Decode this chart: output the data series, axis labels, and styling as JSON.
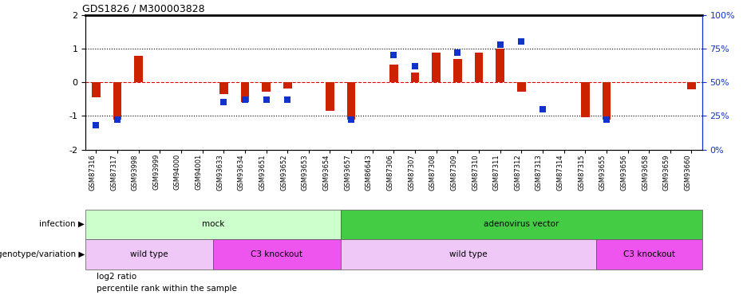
{
  "title": "GDS1826 / M300003828",
  "samples": [
    "GSM87316",
    "GSM87317",
    "GSM93998",
    "GSM93999",
    "GSM94000",
    "GSM94001",
    "GSM93633",
    "GSM93634",
    "GSM93651",
    "GSM93652",
    "GSM93653",
    "GSM93654",
    "GSM93657",
    "GSM86643",
    "GSM87306",
    "GSM87307",
    "GSM87308",
    "GSM87309",
    "GSM87310",
    "GSM87311",
    "GSM87312",
    "GSM87313",
    "GSM87314",
    "GSM87315",
    "GSM93655",
    "GSM93656",
    "GSM93658",
    "GSM93659",
    "GSM93660"
  ],
  "log2_ratio": [
    -0.45,
    -1.1,
    0.78,
    0.0,
    0.0,
    0.0,
    -0.35,
    -0.6,
    -0.28,
    -0.18,
    0.0,
    -0.85,
    -1.1,
    0.0,
    0.52,
    0.28,
    0.88,
    0.68,
    0.88,
    1.0,
    -0.28,
    0.0,
    0.0,
    -1.05,
    -1.1,
    0.0,
    0.0,
    0.0,
    -0.22
  ],
  "percentile_rank": [
    18,
    22,
    null,
    null,
    null,
    null,
    35,
    37,
    37,
    37,
    null,
    null,
    22,
    null,
    70,
    62,
    null,
    72,
    null,
    78,
    80,
    30,
    null,
    null,
    22,
    null,
    null,
    null,
    null
  ],
  "infection_groups": [
    {
      "label": "mock",
      "start": 0,
      "end": 12,
      "color": "#ccffcc"
    },
    {
      "label": "adenovirus vector",
      "start": 12,
      "end": 29,
      "color": "#44cc44"
    }
  ],
  "genotype_groups": [
    {
      "label": "wild type",
      "start": 0,
      "end": 6,
      "color": "#f0c8f8"
    },
    {
      "label": "C3 knockout",
      "start": 6,
      "end": 12,
      "color": "#ee55ee"
    },
    {
      "label": "wild type",
      "start": 12,
      "end": 24,
      "color": "#f0c8f8"
    },
    {
      "label": "C3 knockout",
      "start": 24,
      "end": 29,
      "color": "#ee55ee"
    }
  ],
  "bar_color": "#cc2200",
  "dot_color": "#1133cc",
  "ylim_left": [
    -2,
    2
  ],
  "ylim_right": [
    0,
    100
  ],
  "yticks_left": [
    -2,
    -1,
    0,
    1,
    2
  ],
  "yticks_right": [
    0,
    25,
    50,
    75,
    100
  ],
  "ytick_labels_right": [
    "0%",
    "25%",
    "50%",
    "75%",
    "100%"
  ],
  "infection_label": "infection",
  "genotype_label": "genotype/variation",
  "legend_log2": "log2 ratio",
  "legend_pct": "percentile rank within the sample",
  "bg_color": "#f0f0f0"
}
